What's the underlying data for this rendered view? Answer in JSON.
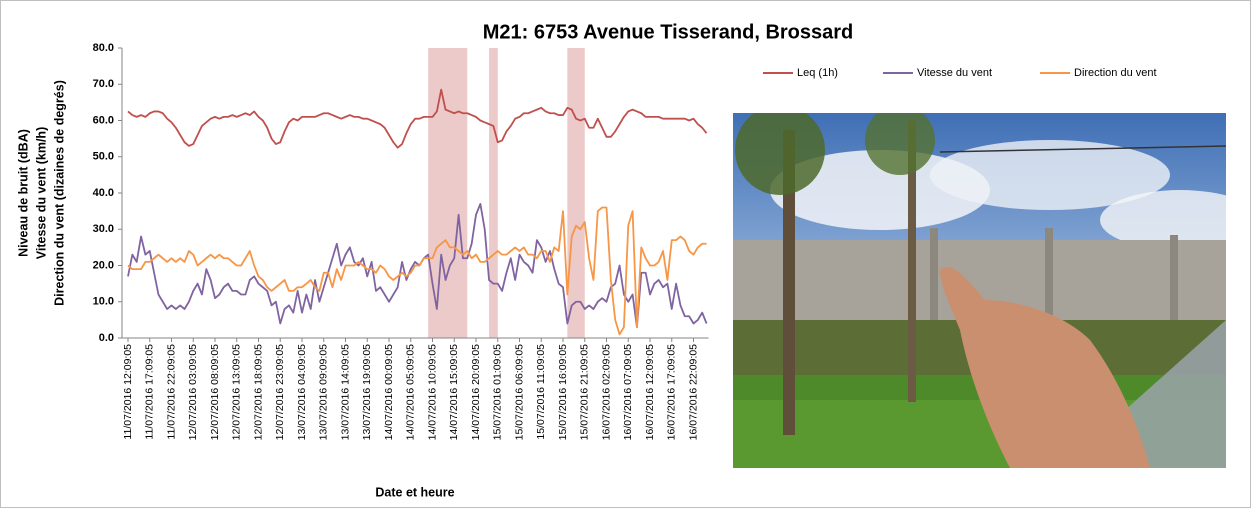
{
  "chart_data": {
    "type": "line",
    "title": "M21: 6753 Avenue Tisserand, Brossard",
    "y_label": [
      "Niveau de bruit (dBA)",
      "Vitesse du vent (km/h)",
      "Direction du vent (dizaines de degrés)"
    ],
    "x_label": "Date et heure",
    "ylim": [
      0,
      80
    ],
    "yticks": [
      {
        "value": 0,
        "label": "0.0"
      },
      {
        "value": 10,
        "label": "10.0"
      },
      {
        "value": 20,
        "label": "20.0"
      },
      {
        "value": 30,
        "label": "30.0"
      },
      {
        "value": 40,
        "label": "40.0"
      },
      {
        "value": 50,
        "label": "50.0"
      },
      {
        "value": 60,
        "label": "60.0"
      },
      {
        "value": 70,
        "label": "70.0"
      },
      {
        "value": 80,
        "label": "80.0"
      }
    ],
    "highlight_ranges": [
      [
        69,
        78
      ],
      [
        83,
        85
      ],
      [
        101,
        105
      ]
    ],
    "highlight_color": "#e6b8b7",
    "categories": [
      "11/07/2016 12:09:05",
      null,
      null,
      null,
      null,
      "11/07/2016 17:09:05",
      null,
      null,
      null,
      null,
      "11/07/2016 22:09:05",
      null,
      null,
      null,
      null,
      "12/07/2016 03:09:05",
      null,
      null,
      null,
      null,
      "12/07/2016 08:09:05",
      null,
      null,
      null,
      null,
      "12/07/2016 13:09:05",
      null,
      null,
      null,
      null,
      "12/07/2016 18:09:05",
      null,
      null,
      null,
      null,
      "12/07/2016 23:09:05",
      null,
      null,
      null,
      null,
      "13/07/2016 04:09:05",
      null,
      null,
      null,
      null,
      "13/07/2016 09:09:05",
      null,
      null,
      null,
      null,
      "13/07/2016 14:09:05",
      null,
      null,
      null,
      null,
      "13/07/2016 19:09:05",
      null,
      null,
      null,
      null,
      "14/07/2016 00:09:05",
      null,
      null,
      null,
      null,
      "14/07/2016 05:09:05",
      null,
      null,
      null,
      null,
      "14/07/2016 10:09:05",
      null,
      null,
      null,
      null,
      "14/07/2016 15:09:05",
      null,
      null,
      null,
      null,
      "14/07/2016 20:09:05",
      null,
      null,
      null,
      null,
      "15/07/2016 01:09:05",
      null,
      null,
      null,
      null,
      "15/07/2016 06:09:05",
      null,
      null,
      null,
      null,
      "15/07/2016 11:09:05",
      null,
      null,
      null,
      null,
      "15/07/2016 16:09:05",
      null,
      null,
      null,
      null,
      "15/07/2016 21:09:05",
      null,
      null,
      null,
      null,
      "16/07/2016 02:09:05",
      null,
      null,
      null,
      null,
      "16/07/2016 07:09:05",
      null,
      null,
      null,
      null,
      "16/07/2016 12:09:05",
      null,
      null,
      null,
      null,
      "16/07/2016 17:09:05",
      null,
      null,
      null,
      null,
      "16/07/2016 22:09:05",
      null,
      null,
      null
    ],
    "series": [
      {
        "name": "Leq (1h)",
        "color": "#c0504d",
        "values": [
          62.5,
          61.5,
          61,
          61.5,
          61,
          62,
          62.5,
          62.5,
          62,
          60.5,
          59.5,
          58,
          56,
          54,
          53,
          53.5,
          56,
          58.5,
          59.5,
          60.5,
          61,
          60.5,
          61,
          61,
          61.5,
          61,
          61.5,
          62,
          61.5,
          62.5,
          61,
          60,
          58,
          55,
          53.5,
          54,
          57,
          59.5,
          60.5,
          60,
          61,
          61,
          61,
          61,
          61.5,
          62,
          62,
          61.5,
          61,
          60.5,
          61,
          61.5,
          61,
          61,
          60.5,
          60.5,
          60,
          59.5,
          59,
          58,
          56,
          54,
          52.5,
          53.5,
          56.5,
          59,
          60.5,
          60.5,
          61,
          61,
          61,
          62.5,
          68.5,
          63,
          62.5,
          62,
          62.5,
          62,
          62,
          61.5,
          61,
          60,
          59.5,
          59,
          58.5,
          54,
          54.5,
          57,
          58.5,
          60.5,
          61,
          62,
          62,
          62.5,
          63,
          63.5,
          62.5,
          62,
          62,
          61.5,
          61.5,
          63.5,
          63,
          60.5,
          60,
          60.5,
          58,
          58,
          60.5,
          58,
          55.5,
          55.5,
          57,
          59,
          61,
          62.5,
          63,
          62.5,
          62,
          61,
          61,
          61,
          61,
          60.5,
          60.5,
          60.5,
          60.5,
          60.5,
          60.5,
          60,
          60.5,
          59,
          58,
          56.5
        ]
      },
      {
        "name": "Vitesse du vent",
        "color": "#8064a2",
        "values": [
          17,
          23,
          21,
          28,
          23,
          24,
          18,
          12,
          10,
          8,
          9,
          8,
          9,
          8,
          10,
          13,
          15,
          12,
          19,
          16,
          11,
          12,
          14,
          15,
          13,
          13,
          12,
          12,
          16,
          17,
          15,
          14,
          13,
          9,
          10,
          4,
          8,
          9,
          7,
          13,
          7,
          12,
          8,
          16,
          10,
          14,
          18,
          22,
          26,
          20,
          23,
          25,
          21,
          20,
          22,
          17,
          21,
          13,
          14,
          12,
          10,
          12,
          14,
          21,
          16,
          19,
          21,
          20,
          22,
          23,
          15,
          8,
          23,
          16,
          20,
          22,
          34,
          22,
          22,
          26,
          34,
          37,
          30,
          16,
          15,
          15,
          13,
          18,
          22,
          16,
          23,
          21,
          20,
          18,
          27,
          25,
          21,
          24,
          19,
          15,
          14,
          4,
          9,
          10,
          10,
          8,
          9,
          8,
          10,
          11,
          10,
          14,
          15,
          20,
          12,
          10,
          12,
          3,
          18,
          18,
          12,
          15,
          16,
          14,
          15,
          8,
          15,
          9,
          6,
          6,
          4,
          5,
          7,
          4
        ]
      },
      {
        "name": "Direction du vent",
        "color": "#f79646",
        "values": [
          20,
          19,
          19,
          19,
          21,
          21,
          22,
          23,
          22,
          21,
          22,
          21,
          22,
          21,
          24,
          23,
          20,
          21,
          22,
          23,
          22,
          23,
          22,
          22,
          21,
          20,
          20,
          22,
          24,
          20,
          17,
          16,
          14,
          13,
          14,
          15,
          16,
          13,
          13,
          14,
          14,
          15,
          16,
          14,
          13,
          18,
          18,
          14,
          19,
          16,
          20,
          20,
          20,
          21,
          20,
          19,
          19,
          18,
          20,
          19,
          17,
          16,
          17,
          18,
          17,
          18,
          20,
          20,
          22,
          22,
          22,
          25,
          26,
          27,
          25,
          25,
          24,
          23,
          24,
          22,
          23,
          21,
          21,
          22,
          23,
          24,
          23,
          23,
          24,
          25,
          24,
          25,
          23,
          23,
          22,
          24,
          24,
          21,
          25,
          24,
          35,
          12,
          28,
          31,
          30,
          32,
          22,
          16,
          35,
          36,
          36,
          16,
          5,
          1,
          3,
          31,
          35,
          3,
          25,
          22,
          20,
          20,
          21,
          24,
          16,
          27,
          27,
          28,
          27,
          24,
          23,
          25,
          26,
          26
        ]
      }
    ]
  }
}
